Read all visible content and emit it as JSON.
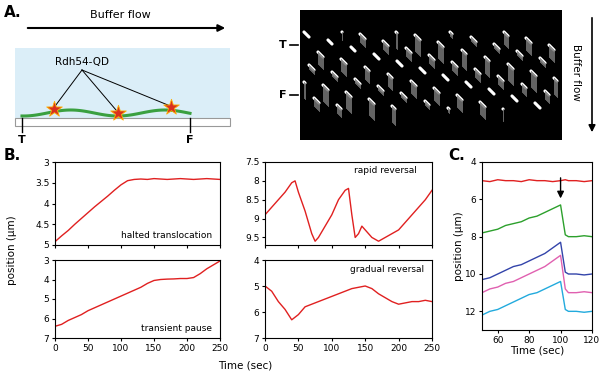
{
  "figure": {
    "A": {
      "label": "A.",
      "flow_label": "Buffer flow",
      "protein_label": "Rdh54-QD",
      "tether_label": "T",
      "free_label": "F"
    },
    "B": {
      "label": "B.",
      "y_label": "position (μm)",
      "x_label": "Time (sec)"
    },
    "C": {
      "label": "C."
    }
  },
  "chart_data": [
    {
      "type": "line",
      "panel": "B",
      "annotation": "halted translocation",
      "x": [
        0,
        10,
        20,
        30,
        40,
        50,
        60,
        70,
        80,
        90,
        100,
        110,
        120,
        130,
        140,
        150,
        160,
        170,
        180,
        190,
        200,
        210,
        220,
        230,
        240,
        250
      ],
      "series": [
        {
          "color": "#e02020",
          "values": [
            4.92,
            4.78,
            4.65,
            4.5,
            4.36,
            4.22,
            4.08,
            3.95,
            3.82,
            3.68,
            3.55,
            3.45,
            3.42,
            3.41,
            3.42,
            3.4,
            3.41,
            3.42,
            3.41,
            3.4,
            3.41,
            3.42,
            3.41,
            3.4,
            3.41,
            3.42
          ]
        }
      ],
      "xlim": [
        0,
        250
      ],
      "ylim": [
        5,
        3
      ],
      "xticks": [
        0,
        50,
        100,
        150,
        200,
        250
      ],
      "yticks": [
        3,
        3.5,
        4,
        4.5,
        5
      ],
      "tick_labels": "y"
    },
    {
      "type": "line",
      "panel": "B",
      "annotation": "rapid reversal",
      "x": [
        0,
        10,
        20,
        30,
        40,
        45,
        50,
        60,
        70,
        75,
        80,
        90,
        100,
        110,
        120,
        125,
        130,
        135,
        140,
        145,
        150,
        160,
        170,
        175,
        180,
        190,
        200,
        210,
        220,
        230,
        240,
        250
      ],
      "series": [
        {
          "color": "#e02020",
          "values": [
            8.9,
            8.7,
            8.5,
            8.3,
            8.05,
            8.0,
            8.3,
            8.8,
            9.4,
            9.6,
            9.5,
            9.2,
            8.9,
            8.5,
            8.25,
            8.2,
            8.9,
            9.5,
            9.4,
            9.2,
            9.3,
            9.5,
            9.6,
            9.55,
            9.5,
            9.4,
            9.3,
            9.1,
            8.9,
            8.7,
            8.5,
            8.25
          ]
        }
      ],
      "xlim": [
        0,
        250
      ],
      "ylim": [
        9.7,
        7.5
      ],
      "xticks": [
        0,
        50,
        100,
        150,
        200,
        250
      ],
      "yticks": [
        7.5,
        8,
        8.5,
        9,
        9.5
      ],
      "tick_labels": "y"
    },
    {
      "type": "line",
      "panel": "B",
      "annotation": "transient pause",
      "x": [
        0,
        10,
        20,
        30,
        40,
        50,
        60,
        70,
        80,
        90,
        100,
        110,
        120,
        130,
        140,
        150,
        160,
        170,
        180,
        190,
        200,
        210,
        220,
        230,
        240,
        250
      ],
      "series": [
        {
          "color": "#e02020",
          "values": [
            6.4,
            6.3,
            6.1,
            5.95,
            5.8,
            5.6,
            5.45,
            5.3,
            5.15,
            5.0,
            4.85,
            4.7,
            4.55,
            4.4,
            4.2,
            4.05,
            4.0,
            3.98,
            3.97,
            3.95,
            3.95,
            3.9,
            3.7,
            3.45,
            3.25,
            3.05
          ]
        }
      ],
      "xlim": [
        0,
        250
      ],
      "ylim": [
        7,
        3
      ],
      "xticks": [
        0,
        50,
        100,
        150,
        200,
        250
      ],
      "yticks": [
        3,
        4,
        5,
        6,
        7
      ],
      "tick_labels": true
    },
    {
      "type": "line",
      "panel": "B",
      "annotation": "gradual reversal",
      "x": [
        0,
        10,
        20,
        30,
        40,
        50,
        60,
        70,
        80,
        90,
        100,
        110,
        120,
        130,
        140,
        150,
        160,
        170,
        180,
        190,
        200,
        210,
        220,
        230,
        240,
        250
      ],
      "series": [
        {
          "color": "#e02020",
          "values": [
            5.0,
            5.2,
            5.6,
            5.9,
            6.3,
            6.1,
            5.8,
            5.7,
            5.6,
            5.5,
            5.4,
            5.3,
            5.2,
            5.1,
            5.05,
            5.0,
            5.1,
            5.3,
            5.45,
            5.6,
            5.7,
            5.65,
            5.6,
            5.6,
            5.55,
            5.6
          ]
        }
      ],
      "xlim": [
        0,
        250
      ],
      "ylim": [
        7,
        4
      ],
      "xticks": [
        0,
        50,
        100,
        150,
        200,
        250
      ],
      "yticks": [
        4,
        5,
        6,
        7
      ],
      "tick_labels": true
    },
    {
      "type": "line",
      "panel": "C",
      "x_label": "Time (sec)",
      "y_label": "position (μm)",
      "x": [
        50,
        55,
        60,
        65,
        70,
        75,
        80,
        85,
        90,
        95,
        100,
        103,
        105,
        110,
        115,
        120
      ],
      "series": [
        {
          "color": "#e02020",
          "values": [
            5.0,
            5.05,
            4.95,
            5.0,
            5.0,
            5.05,
            4.95,
            5.0,
            5.0,
            5.05,
            5.0,
            4.95,
            5.0,
            5.0,
            5.05,
            5.0
          ]
        },
        {
          "color": "#2ca02c",
          "values": [
            7.8,
            7.7,
            7.6,
            7.4,
            7.3,
            7.2,
            7.0,
            6.9,
            6.7,
            6.5,
            6.3,
            7.9,
            8.0,
            8.0,
            7.95,
            8.0
          ]
        },
        {
          "color": "#3344aa",
          "values": [
            10.3,
            10.2,
            10.0,
            9.8,
            9.6,
            9.5,
            9.3,
            9.1,
            8.9,
            8.6,
            8.3,
            9.9,
            10.0,
            10.0,
            10.05,
            10.0
          ]
        },
        {
          "color": "#e060b0",
          "values": [
            11.0,
            10.8,
            10.7,
            10.5,
            10.4,
            10.2,
            10.0,
            9.8,
            9.6,
            9.3,
            9.0,
            10.8,
            11.0,
            11.0,
            10.95,
            11.0
          ]
        },
        {
          "color": "#22aadd",
          "values": [
            12.2,
            12.0,
            11.9,
            11.7,
            11.5,
            11.3,
            11.1,
            11.0,
            10.8,
            10.6,
            10.4,
            11.9,
            12.0,
            12.0,
            12.05,
            12.0
          ]
        }
      ],
      "xlim": [
        50,
        120
      ],
      "ylim": [
        13,
        4
      ],
      "xticks": [
        60,
        80,
        100,
        120
      ],
      "yticks": [
        4,
        6,
        8,
        10,
        12
      ],
      "tick_labels": true
    }
  ]
}
